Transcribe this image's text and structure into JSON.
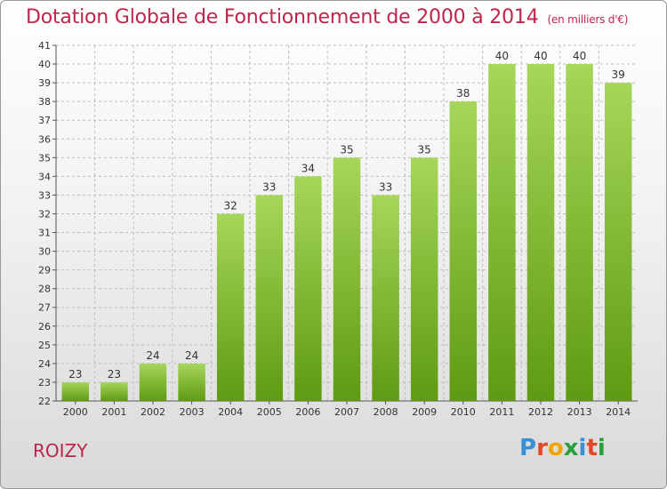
{
  "header": {
    "title": "Dotation Globale de Fonctionnement de 2000 à 2014",
    "unit": "(en milliers d'€)"
  },
  "footer": {
    "commune": "ROIZY",
    "logo_letters": [
      "P",
      "r",
      "o",
      "x",
      "i",
      "t",
      "i"
    ],
    "logo_colors": [
      "#3a8fd6",
      "#e0492b",
      "#f0a500",
      "#2a9e3a",
      "#3a8fd6",
      "#e0492b",
      "#2a9e3a"
    ]
  },
  "colors": {
    "bar_top": "#a6d65a",
    "bar_bottom": "#5f9a12",
    "text": "#333333",
    "axis": "#555555",
    "grid": "#bdbdbd"
  },
  "chart_data": {
    "type": "bar",
    "title": "Dotation Globale de Fonctionnement de 2000 à 2014",
    "subtitle": "(en milliers d'€)",
    "categories": [
      "2000",
      "2001",
      "2002",
      "2003",
      "2004",
      "2005",
      "2006",
      "2007",
      "2008",
      "2009",
      "2010",
      "2011",
      "2012",
      "2013",
      "2014"
    ],
    "values": [
      23,
      23,
      24,
      24,
      32,
      33,
      34,
      35,
      33,
      35,
      38,
      40,
      40,
      40,
      39
    ],
    "ylim": [
      22,
      41
    ],
    "yticks": [
      22,
      23,
      24,
      25,
      26,
      27,
      28,
      29,
      30,
      31,
      32,
      33,
      34,
      35,
      36,
      37,
      38,
      39,
      40,
      41
    ],
    "grid": true,
    "legend": "none"
  }
}
